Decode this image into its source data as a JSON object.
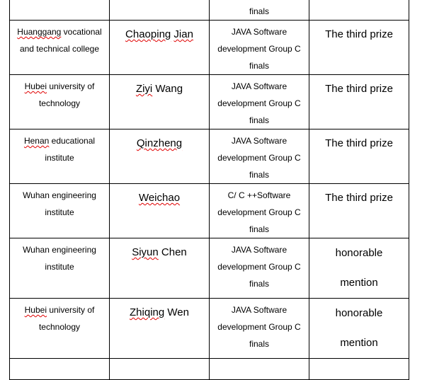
{
  "rows": [
    {
      "school": [
        [
          {
            "t": ""
          }
        ]
      ],
      "name": [
        {
          "t": ""
        }
      ],
      "event": [
        [
          {
            "t": ""
          }
        ],
        [
          {
            "t": ""
          }
        ],
        [
          {
            "t": "finals"
          }
        ]
      ],
      "prize": [],
      "partial": "top"
    },
    {
      "school": [
        [
          {
            "t": "Huanggang",
            "err": true
          },
          {
            "t": " vocational"
          }
        ],
        [
          {
            "t": "and technical college"
          }
        ]
      ],
      "name": [
        {
          "t": "Chaoping",
          "err": true
        },
        {
          "t": " "
        },
        {
          "t": "Jian",
          "err": true
        }
      ],
      "event": [
        [
          {
            "t": "JAVA Software"
          }
        ],
        [
          {
            "t": "development Group C"
          }
        ],
        [
          {
            "t": "finals"
          }
        ]
      ],
      "prize": [
        "The third prize"
      ]
    },
    {
      "school": [
        [
          {
            "t": "Hubei",
            "err": true
          },
          {
            "t": " university of"
          }
        ],
        [
          {
            "t": "technology"
          }
        ]
      ],
      "name": [
        {
          "t": "Ziyi",
          "err": true
        },
        {
          "t": " Wang"
        }
      ],
      "event": [
        [
          {
            "t": "JAVA Software"
          }
        ],
        [
          {
            "t": "development Group C"
          }
        ],
        [
          {
            "t": "finals"
          }
        ]
      ],
      "prize": [
        "The third prize"
      ]
    },
    {
      "school": [
        [
          {
            "t": "Henan",
            "err": true
          },
          {
            "t": " educational"
          }
        ],
        [
          {
            "t": "institute"
          }
        ]
      ],
      "name": [
        {
          "t": "Qinzheng",
          "err": true
        }
      ],
      "event": [
        [
          {
            "t": "JAVA Software"
          }
        ],
        [
          {
            "t": "development Group C"
          }
        ],
        [
          {
            "t": "finals"
          }
        ]
      ],
      "prize": [
        "The third prize"
      ]
    },
    {
      "school": [
        [
          {
            "t": "Wuhan engineering"
          }
        ],
        [
          {
            "t": "institute"
          }
        ]
      ],
      "name": [
        {
          "t": "Weichao",
          "err": true
        }
      ],
      "event": [
        [
          {
            "t": "C/ C ++Software"
          }
        ],
        [
          {
            "t": "development Group C"
          }
        ],
        [
          {
            "t": "finals"
          }
        ]
      ],
      "prize": [
        "The third prize"
      ]
    },
    {
      "school": [
        [
          {
            "t": "Wuhan engineering"
          }
        ],
        [
          {
            "t": "institute"
          }
        ]
      ],
      "name": [
        {
          "t": "Siyun",
          "err": true
        },
        {
          "t": " Chen"
        }
      ],
      "event": [
        [
          {
            "t": "JAVA Software"
          }
        ],
        [
          {
            "t": "development Group C"
          }
        ],
        [
          {
            "t": "finals"
          }
        ]
      ],
      "prize": [
        "honorable",
        "mention"
      ]
    },
    {
      "school": [
        [
          {
            "t": "Hubei",
            "err": true
          },
          {
            "t": " university of"
          }
        ],
        [
          {
            "t": "technology"
          }
        ]
      ],
      "name": [
        {
          "t": "Zhiqing",
          "err": true
        },
        {
          "t": " Wen"
        }
      ],
      "event": [
        [
          {
            "t": "JAVA Software"
          }
        ],
        [
          {
            "t": "development Group C"
          }
        ],
        [
          {
            "t": "finals"
          }
        ]
      ],
      "prize": [
        "honorable",
        "mention"
      ]
    },
    {
      "school": [],
      "name": [],
      "event": [],
      "prize": [],
      "partial": "bottom"
    }
  ]
}
